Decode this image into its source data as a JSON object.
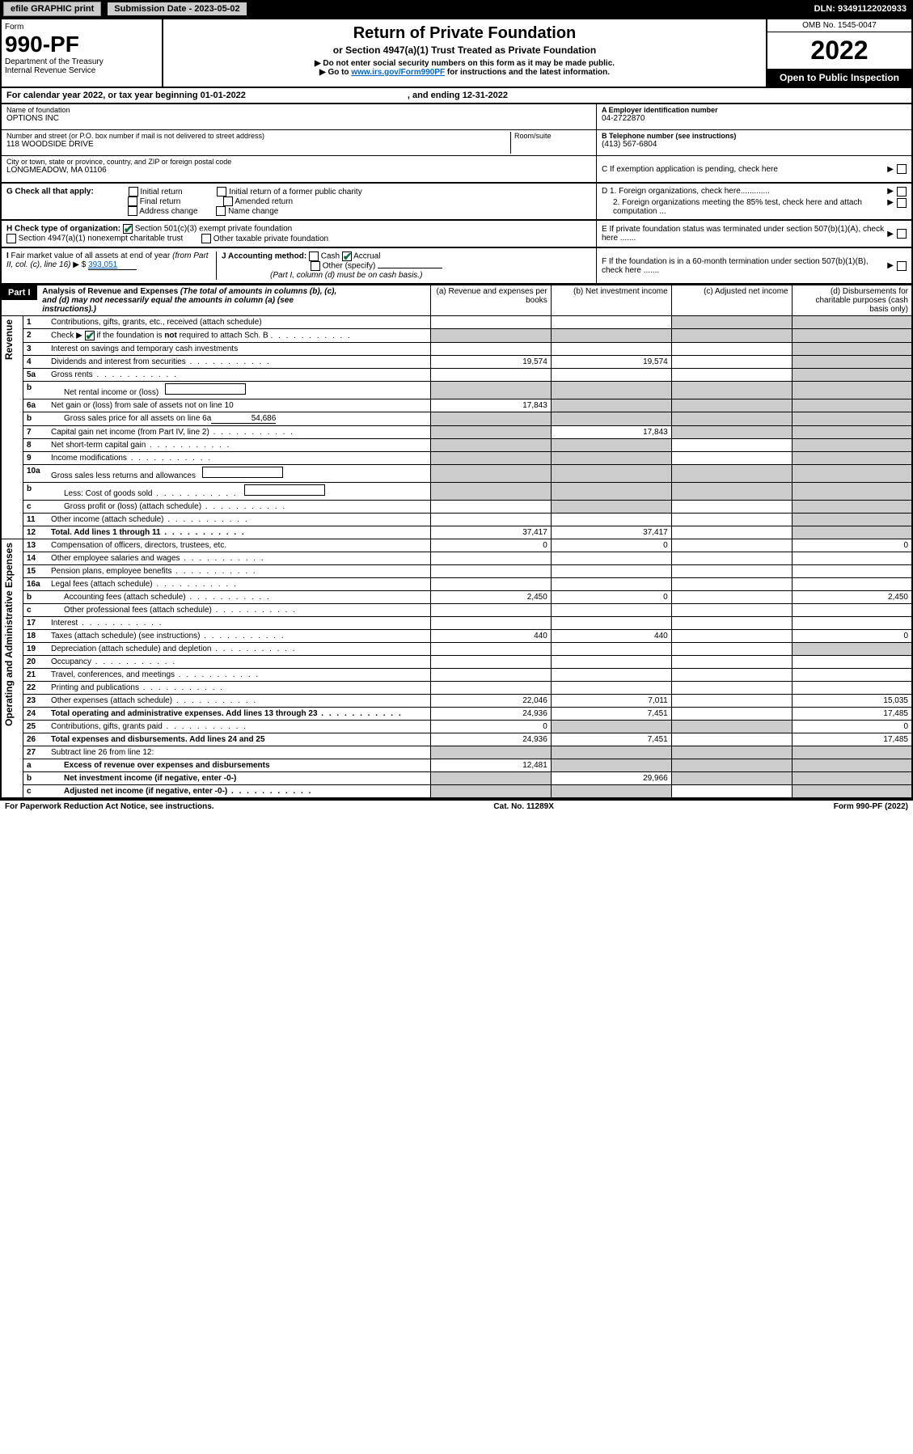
{
  "header_bar": {
    "efile_btn": "efile GRAPHIC print",
    "sub_date_label": "Submission Date - 2023-05-02",
    "dln": "DLN: 93491122020933"
  },
  "form_header": {
    "form_label": "Form",
    "form_num": "990-PF",
    "dept1": "Department of the Treasury",
    "dept2": "Internal Revenue Service",
    "title": "Return of Private Foundation",
    "subtitle": "or Section 4947(a)(1) Trust Treated as Private Foundation",
    "note1": "▶ Do not enter social security numbers on this form as it may be made public.",
    "note2_pre": "▶ Go to ",
    "note2_link": "www.irs.gov/Form990PF",
    "note2_post": " for instructions and the latest information.",
    "omb": "OMB No. 1545-0047",
    "year": "2022",
    "open": "Open to Public Inspection"
  },
  "cal_year": {
    "text1": "For calendar year 2022, or tax year beginning 01-01-2022",
    "text2": ", and ending 12-31-2022"
  },
  "info": {
    "name_label": "Name of foundation",
    "name": "OPTIONS INC",
    "addr_label": "Number and street (or P.O. box number if mail is not delivered to street address)",
    "addr": "118 WOODSIDE DRIVE",
    "room_label": "Room/suite",
    "city_label": "City or town, state or province, country, and ZIP or foreign postal code",
    "city": "LONGMEADOW, MA  01106",
    "ein_label": "A Employer identification number",
    "ein": "04-2722870",
    "phone_label": "B Telephone number (see instructions)",
    "phone": "(413) 567-6804",
    "c_label": "C If exemption application is pending, check here",
    "d1": "D 1. Foreign organizations, check here.............",
    "d2": "2. Foreign organizations meeting the 85% test, check here and attach computation ...",
    "e_label": "E  If private foundation status was terminated under section 507(b)(1)(A), check here .......",
    "f_label": "F  If the foundation is in a 60-month termination under section 507(b)(1)(B), check here ......."
  },
  "g": {
    "label": "G Check all that apply:",
    "opts": [
      "Initial return",
      "Final return",
      "Address change",
      "Initial return of a former public charity",
      "Amended return",
      "Name change"
    ]
  },
  "h": {
    "label": "H Check type of organization:",
    "opt1": "Section 501(c)(3) exempt private foundation",
    "opt2": "Section 4947(a)(1) nonexempt charitable trust",
    "opt3": "Other taxable private foundation"
  },
  "i": {
    "label": "I Fair market value of all assets at end of year (from Part II, col. (c), line 16) ▶ $",
    "value": "393,051"
  },
  "j": {
    "label": "J Accounting method:",
    "cash": "Cash",
    "accrual": "Accrual",
    "other": "Other (specify)",
    "note": "(Part I, column (d) must be on cash basis.)"
  },
  "part1": {
    "label": "Part I",
    "title": "Analysis of Revenue and Expenses",
    "note": "(The total of amounts in columns (b), (c), and (d) may not necessarily equal the amounts in column (a) (see instructions).)",
    "col_a": "(a)   Revenue and expenses per books",
    "col_b": "(b)   Net investment income",
    "col_c": "(c)   Adjusted net income",
    "col_d": "(d)   Disbursements for charitable purposes (cash basis only)"
  },
  "vert": {
    "revenue": "Revenue",
    "expenses": "Operating and Administrative Expenses"
  },
  "lines": [
    {
      "n": "1",
      "t": "Contributions, gifts, grants, etc., received (attach schedule)",
      "a": "",
      "b": "",
      "c": "",
      "d": "",
      "shade_c": true,
      "shade_d": true
    },
    {
      "n": "2",
      "t": "Check ▶ ☑ if the foundation is not required to attach Sch. B",
      "dots": true,
      "a": "",
      "b": "",
      "c": "",
      "d": "",
      "shade_all": true
    },
    {
      "n": "3",
      "t": "Interest on savings and temporary cash investments",
      "a": "",
      "b": "",
      "c": "",
      "d": "",
      "shade_d": true
    },
    {
      "n": "4",
      "t": "Dividends and interest from securities",
      "dots": true,
      "a": "19,574",
      "b": "19,574",
      "c": "",
      "d": "",
      "shade_d": true
    },
    {
      "n": "5a",
      "t": "Gross rents",
      "dots": true,
      "a": "",
      "b": "",
      "c": "",
      "d": "",
      "shade_d": true
    },
    {
      "n": "b",
      "t": "Net rental income or (loss)",
      "indent": true,
      "a": "",
      "b": "",
      "c": "",
      "d": "",
      "shade_all": true,
      "inline_box": true
    },
    {
      "n": "6a",
      "t": "Net gain or (loss) from sale of assets not on line 10",
      "a": "17,843",
      "b": "",
      "c": "",
      "d": "",
      "shade_bcd": true
    },
    {
      "n": "b",
      "t": "Gross sales price for all assets on line 6a",
      "indent": true,
      "inline_val": "54,686",
      "a": "",
      "b": "",
      "c": "",
      "d": "",
      "shade_all": true
    },
    {
      "n": "7",
      "t": "Capital gain net income (from Part IV, line 2)",
      "dots": true,
      "a": "",
      "b": "17,843",
      "c": "",
      "d": "",
      "shade_a": true,
      "shade_cd": true
    },
    {
      "n": "8",
      "t": "Net short-term capital gain",
      "dots": true,
      "a": "",
      "b": "",
      "c": "",
      "d": "",
      "shade_ab": true,
      "shade_d": true
    },
    {
      "n": "9",
      "t": "Income modifications",
      "dots": true,
      "a": "",
      "b": "",
      "c": "",
      "d": "",
      "shade_ab": true,
      "shade_d": true
    },
    {
      "n": "10a",
      "t": "Gross sales less returns and allowances",
      "inline_box": true,
      "a": "",
      "b": "",
      "c": "",
      "d": "",
      "shade_all": true
    },
    {
      "n": "b",
      "t": "Less: Cost of goods sold",
      "dots": true,
      "indent": true,
      "inline_box": true,
      "a": "",
      "b": "",
      "c": "",
      "d": "",
      "shade_all": true
    },
    {
      "n": "c",
      "t": "Gross profit or (loss) (attach schedule)",
      "dots": true,
      "indent": true,
      "a": "",
      "b": "",
      "c": "",
      "d": "",
      "shade_b": true,
      "shade_d": true
    },
    {
      "n": "11",
      "t": "Other income (attach schedule)",
      "dots": true,
      "a": "",
      "b": "",
      "c": "",
      "d": "",
      "shade_d": true
    },
    {
      "n": "12",
      "t": "Total. Add lines 1 through 11",
      "dots": true,
      "bold": true,
      "a": "37,417",
      "b": "37,417",
      "c": "",
      "d": "",
      "shade_d": true
    },
    {
      "n": "13",
      "t": "Compensation of officers, directors, trustees, etc.",
      "a": "0",
      "b": "0",
      "c": "",
      "d": "0"
    },
    {
      "n": "14",
      "t": "Other employee salaries and wages",
      "dots": true,
      "a": "",
      "b": "",
      "c": "",
      "d": ""
    },
    {
      "n": "15",
      "t": "Pension plans, employee benefits",
      "dots": true,
      "a": "",
      "b": "",
      "c": "",
      "d": ""
    },
    {
      "n": "16a",
      "t": "Legal fees (attach schedule)",
      "dots": true,
      "a": "",
      "b": "",
      "c": "",
      "d": ""
    },
    {
      "n": "b",
      "t": "Accounting fees (attach schedule)",
      "dots": true,
      "indent": true,
      "a": "2,450",
      "b": "0",
      "c": "",
      "d": "2,450"
    },
    {
      "n": "c",
      "t": "Other professional fees (attach schedule)",
      "dots": true,
      "indent": true,
      "a": "",
      "b": "",
      "c": "",
      "d": ""
    },
    {
      "n": "17",
      "t": "Interest",
      "dots": true,
      "a": "",
      "b": "",
      "c": "",
      "d": ""
    },
    {
      "n": "18",
      "t": "Taxes (attach schedule) (see instructions)",
      "dots": true,
      "a": "440",
      "b": "440",
      "c": "",
      "d": "0"
    },
    {
      "n": "19",
      "t": "Depreciation (attach schedule) and depletion",
      "dots": true,
      "a": "",
      "b": "",
      "c": "",
      "d": "",
      "shade_d": true
    },
    {
      "n": "20",
      "t": "Occupancy",
      "dots": true,
      "a": "",
      "b": "",
      "c": "",
      "d": ""
    },
    {
      "n": "21",
      "t": "Travel, conferences, and meetings",
      "dots": true,
      "a": "",
      "b": "",
      "c": "",
      "d": ""
    },
    {
      "n": "22",
      "t": "Printing and publications",
      "dots": true,
      "a": "",
      "b": "",
      "c": "",
      "d": ""
    },
    {
      "n": "23",
      "t": "Other expenses (attach schedule)",
      "dots": true,
      "a": "22,046",
      "b": "7,011",
      "c": "",
      "d": "15,035"
    },
    {
      "n": "24",
      "t": "Total operating and administrative expenses. Add lines 13 through 23",
      "dots": true,
      "bold": true,
      "a": "24,936",
      "b": "7,451",
      "c": "",
      "d": "17,485"
    },
    {
      "n": "25",
      "t": "Contributions, gifts, grants paid",
      "dots": true,
      "a": "0",
      "b": "",
      "c": "",
      "d": "0",
      "shade_bc": true
    },
    {
      "n": "26",
      "t": "Total expenses and disbursements. Add lines 24 and 25",
      "bold": true,
      "a": "24,936",
      "b": "7,451",
      "c": "",
      "d": "17,485"
    },
    {
      "n": "27",
      "t": "Subtract line 26 from line 12:",
      "a": "",
      "b": "",
      "c": "",
      "d": "",
      "shade_all": true
    },
    {
      "n": "a",
      "t": "Excess of revenue over expenses and disbursements",
      "bold": true,
      "indent": true,
      "a": "12,481",
      "b": "",
      "c": "",
      "d": "",
      "shade_bcd": true
    },
    {
      "n": "b",
      "t": "Net investment income (if negative, enter -0-)",
      "bold": true,
      "indent": true,
      "a": "",
      "b": "29,966",
      "c": "",
      "d": "",
      "shade_a": true,
      "shade_cd": true
    },
    {
      "n": "c",
      "t": "Adjusted net income (if negative, enter -0-)",
      "dots": true,
      "bold": true,
      "indent": true,
      "a": "",
      "b": "",
      "c": "",
      "d": "",
      "shade_ab": true,
      "shade_d": true
    }
  ],
  "footer": {
    "left": "For Paperwork Reduction Act Notice, see instructions.",
    "mid": "Cat. No. 11289X",
    "right": "Form 990-PF (2022)"
  },
  "colors": {
    "black": "#000000",
    "white": "#ffffff",
    "gray_shade": "#cccccc",
    "link": "#0066cc",
    "check_green": "#0a6e3a"
  }
}
